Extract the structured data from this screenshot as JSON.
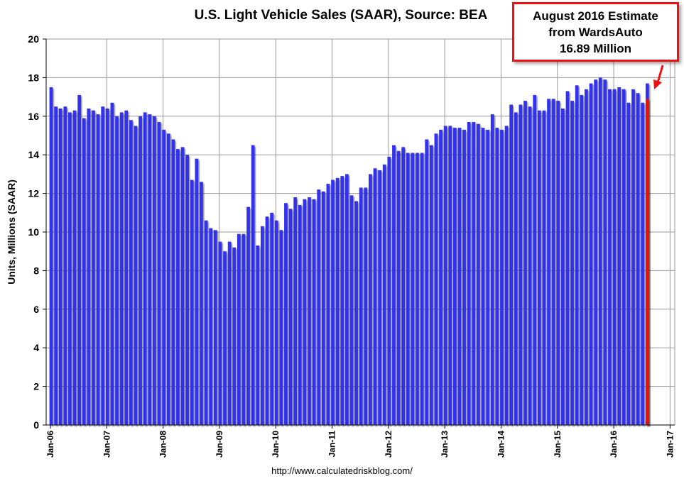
{
  "chart_data": {
    "type": "bar",
    "title": "U.S. Light Vehicle Sales (SAAR), Source: BEA",
    "ylabel": "Units, Millions (SAAR)",
    "xlabel": "",
    "ylim": [
      0,
      20
    ],
    "ytick_step": 2,
    "grid": true,
    "x_tick_labels": [
      "Jan-06",
      "Jan-07",
      "Jan-08",
      "Jan-09",
      "Jan-10",
      "Jan-11",
      "Jan-12",
      "Jan-13",
      "Jan-14",
      "Jan-15",
      "Jan-16",
      "Jan-17"
    ],
    "start_month": "Jan-06",
    "series": [
      {
        "name": "Light Vehicle Sales (SAAR)",
        "color": "#3333ee",
        "values": [
          17.5,
          16.5,
          16.4,
          16.5,
          16.2,
          16.3,
          17.1,
          15.9,
          16.4,
          16.3,
          16.1,
          16.5,
          16.4,
          16.7,
          16.0,
          16.2,
          16.3,
          15.8,
          15.5,
          16.0,
          16.2,
          16.1,
          16.0,
          15.7,
          15.3,
          15.1,
          14.8,
          14.3,
          14.4,
          14.0,
          12.7,
          13.8,
          12.6,
          10.6,
          10.2,
          10.1,
          9.5,
          9.0,
          9.5,
          9.2,
          9.9,
          9.9,
          11.3,
          14.5,
          9.3,
          10.3,
          10.8,
          11.0,
          10.6,
          10.1,
          11.5,
          11.2,
          11.8,
          11.4,
          11.7,
          11.8,
          11.7,
          12.2,
          12.1,
          12.5,
          12.7,
          12.8,
          12.9,
          13.0,
          11.9,
          11.6,
          12.3,
          12.3,
          13.0,
          13.3,
          13.2,
          13.5,
          13.9,
          14.5,
          14.2,
          14.4,
          14.1,
          14.1,
          14.1,
          14.1,
          14.8,
          14.5,
          15.1,
          15.3,
          15.5,
          15.5,
          15.4,
          15.4,
          15.3,
          15.7,
          15.7,
          15.6,
          15.4,
          15.3,
          16.1,
          15.4,
          15.3,
          15.5,
          16.6,
          16.2,
          16.6,
          16.8,
          16.5,
          17.1,
          16.3,
          16.3,
          16.9,
          16.9,
          16.8,
          16.4,
          17.3,
          16.8,
          17.6,
          17.1,
          17.4,
          17.7,
          17.9,
          18.0,
          17.9,
          17.4,
          17.4,
          17.5,
          17.4,
          16.7,
          17.4,
          17.2,
          16.7,
          17.7
        ]
      },
      {
        "name": "August 2016 Estimate",
        "color": "#ee1111",
        "month_index": 127,
        "values": [
          16.89
        ]
      }
    ],
    "annotations": [
      {
        "lines": [
          "August 2016 Estimate",
          "from WardsAuto",
          "16.89 Million"
        ],
        "points_to": "Aug-16",
        "color": "#ee1111"
      }
    ]
  },
  "footer": {
    "source_url": "http://www.calculatedriskblog.com/"
  }
}
